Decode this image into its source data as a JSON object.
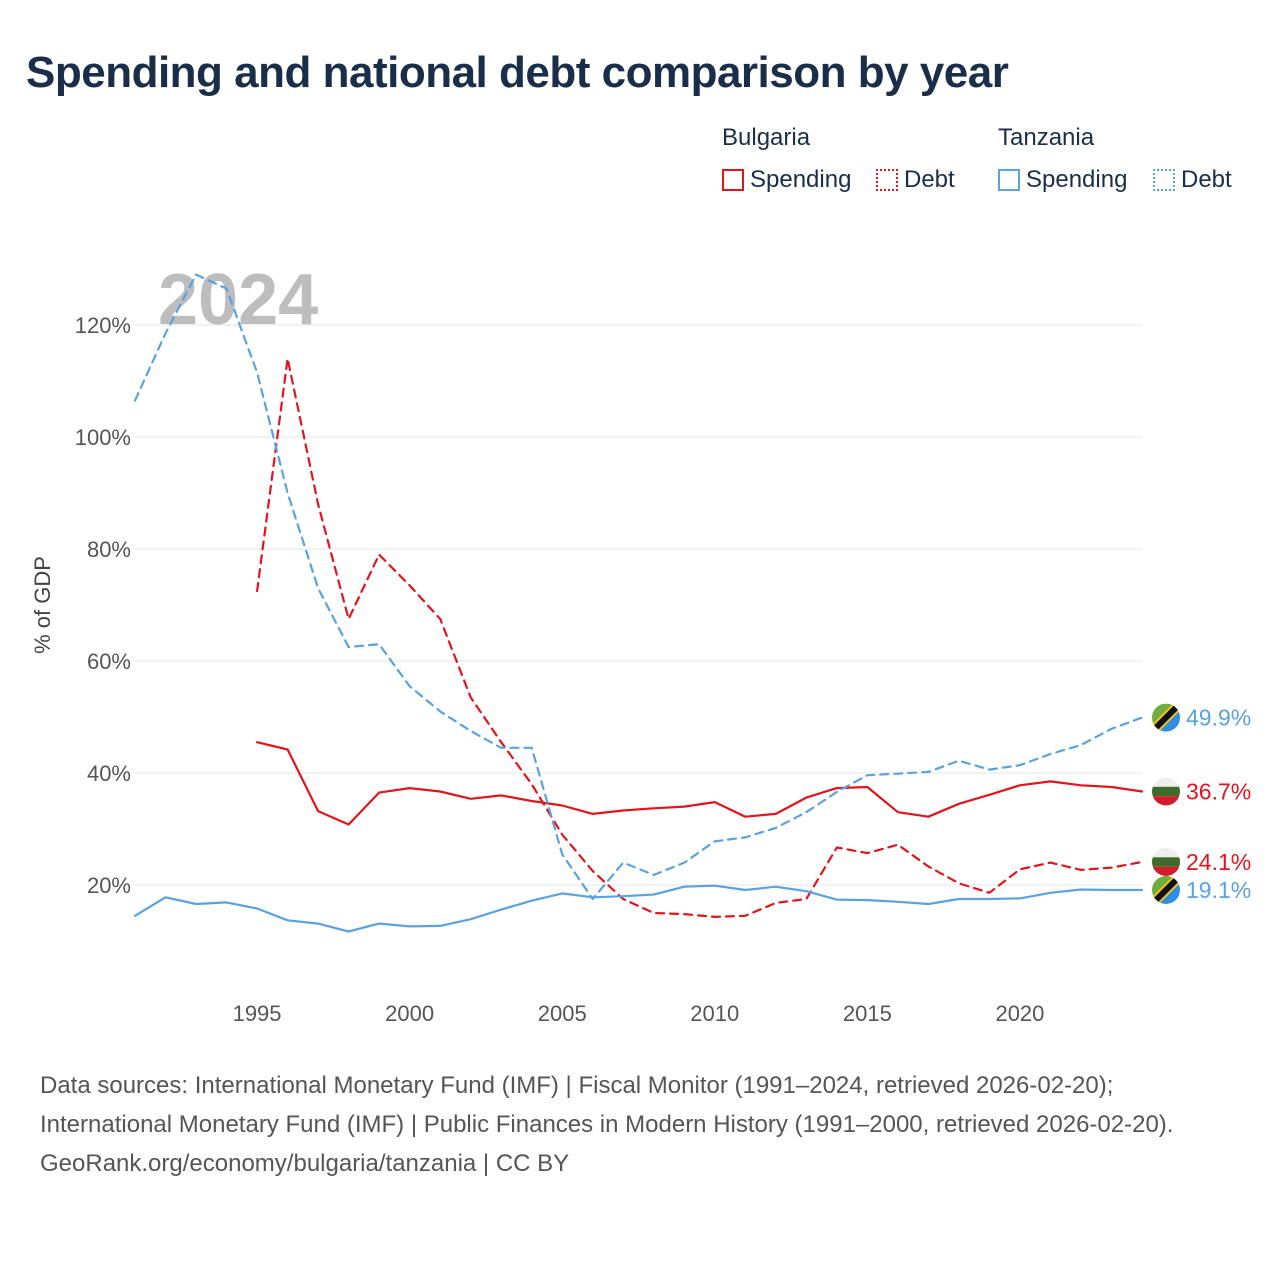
{
  "title": "Spending and national debt comparison by year",
  "legend": {
    "groups": [
      {
        "country": "Bulgaria",
        "spending_label": "Spending",
        "debt_label": "Debt",
        "color": "#e3141b"
      },
      {
        "country": "Tanzania",
        "spending_label": "Spending",
        "debt_label": "Debt",
        "color": "#5aa2e0"
      }
    ]
  },
  "footer": {
    "sources": "Data sources: International Monetary Fund (IMF) | Fiscal Monitor (1991–2024, retrieved 2026-02-20); International Monetary Fund (IMF) | Public Finances in Modern History (1991–2000, retrieved 2026-02-20).",
    "credit": "GeoRank.org/economy/bulgaria/tanzania | CC BY"
  },
  "chart_data": {
    "type": "line",
    "title": "Spending and national debt comparison by year",
    "year_overlay": "2024",
    "xlabel": "",
    "ylabel": "% of GDP",
    "xlim": [
      1991,
      2024
    ],
    "ylim": [
      0,
      130
    ],
    "x_ticks": [
      1995,
      2000,
      2005,
      2010,
      2015,
      2020
    ],
    "y_ticks": [
      20,
      40,
      60,
      80,
      100,
      120
    ],
    "y_tick_labels": [
      "20%",
      "40%",
      "60%",
      "80%",
      "100%",
      "120%"
    ],
    "grid": true,
    "series": [
      {
        "name": "Bulgaria Spending",
        "country": "Bulgaria",
        "metric": "Spending",
        "color": "#e3141b",
        "dash": "solid",
        "end_label": "36.7%",
        "flag": "bulgaria",
        "x": [
          1995,
          1996,
          1997,
          1998,
          1999,
          2000,
          2001,
          2002,
          2003,
          2004,
          2005,
          2006,
          2007,
          2008,
          2009,
          2010,
          2011,
          2012,
          2013,
          2014,
          2015,
          2016,
          2017,
          2018,
          2019,
          2020,
          2021,
          2022,
          2023,
          2024
        ],
        "values": [
          45.5,
          44.2,
          33.2,
          30.8,
          36.5,
          37.3,
          36.7,
          35.4,
          36.0,
          35.0,
          34.2,
          32.7,
          33.3,
          33.7,
          34.0,
          34.8,
          32.2,
          32.7,
          35.6,
          37.3,
          37.5,
          33.0,
          32.2,
          34.5,
          36.1,
          37.8,
          38.5,
          37.8,
          37.5,
          36.7
        ]
      },
      {
        "name": "Bulgaria Debt",
        "country": "Bulgaria",
        "metric": "Debt",
        "color": "#e3141b",
        "dash": "dashed",
        "end_label": "24.1%",
        "flag": "bulgaria",
        "x": [
          1995,
          1996,
          1997,
          1998,
          1999,
          2000,
          2001,
          2002,
          2003,
          2004,
          2005,
          2006,
          2007,
          2008,
          2009,
          2010,
          2011,
          2012,
          2013,
          2014,
          2015,
          2016,
          2017,
          2018,
          2019,
          2020,
          2021,
          2022,
          2023,
          2024
        ],
        "values": [
          72.5,
          114.0,
          88.0,
          67.5,
          79.0,
          73.5,
          67.5,
          53.5,
          45.5,
          38.0,
          29.0,
          22.5,
          17.5,
          15.0,
          14.8,
          14.3,
          14.5,
          16.8,
          17.5,
          26.7,
          25.7,
          27.2,
          23.3,
          20.3,
          18.6,
          22.8,
          24.0,
          22.7,
          23.1,
          24.1
        ]
      },
      {
        "name": "Tanzania Spending",
        "country": "Tanzania",
        "metric": "Spending",
        "color": "#5aa2e0",
        "dash": "solid",
        "end_label": "19.1%",
        "flag": "tanzania",
        "x": [
          1991,
          1992,
          1993,
          1994,
          1995,
          1996,
          1997,
          1998,
          1999,
          2000,
          2001,
          2002,
          2003,
          2004,
          2005,
          2006,
          2007,
          2008,
          2009,
          2010,
          2011,
          2012,
          2013,
          2014,
          2015,
          2016,
          2017,
          2018,
          2019,
          2020,
          2021,
          2022,
          2023,
          2024
        ],
        "values": [
          14.5,
          17.8,
          16.6,
          16.9,
          15.8,
          13.7,
          13.1,
          11.7,
          13.1,
          12.6,
          12.7,
          13.9,
          15.6,
          17.2,
          18.5,
          17.8,
          18.0,
          18.3,
          19.7,
          19.9,
          19.1,
          19.7,
          18.9,
          17.4,
          17.3,
          17.0,
          16.6,
          17.5,
          17.5,
          17.6,
          18.6,
          19.2,
          19.1,
          19.1
        ]
      },
      {
        "name": "Tanzania Debt",
        "country": "Tanzania",
        "metric": "Debt",
        "color": "#5aa2e0",
        "dash": "dashed",
        "end_label": "49.9%",
        "flag": "tanzania",
        "x": [
          1991,
          1992,
          1993,
          1994,
          1995,
          1996,
          1997,
          1998,
          1999,
          2000,
          2001,
          2002,
          2003,
          2004,
          2005,
          2006,
          2007,
          2008,
          2009,
          2010,
          2011,
          2012,
          2013,
          2014,
          2015,
          2016,
          2017,
          2018,
          2019,
          2020,
          2021,
          2022,
          2023,
          2024
        ],
        "values": [
          106.5,
          118.5,
          129.0,
          126.5,
          111.5,
          90.0,
          73.0,
          62.5,
          63.0,
          55.5,
          51.0,
          47.5,
          44.5,
          44.5,
          25.5,
          17.5,
          24.0,
          21.8,
          24.0,
          27.8,
          28.5,
          30.2,
          33.0,
          36.6,
          39.6,
          39.9,
          40.2,
          42.2,
          40.6,
          41.4,
          43.4,
          45.0,
          47.9,
          49.9
        ]
      }
    ]
  }
}
